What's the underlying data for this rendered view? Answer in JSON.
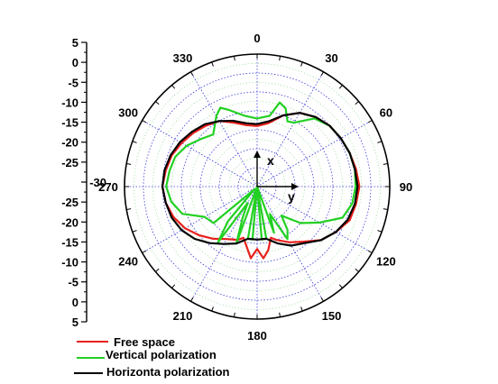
{
  "chart_data": {
    "type": "polar-line",
    "title": "",
    "angle_labels": [
      "0",
      "30",
      "60",
      "90",
      "120",
      "150",
      "180",
      "210",
      "240",
      "270",
      "300",
      "330"
    ],
    "radial_axis": {
      "ticks": [
        "5",
        "0",
        "-5",
        "-10",
        "-15",
        "-20",
        "-25",
        "-30",
        "-25",
        "-20",
        "-15",
        "-10",
        "-5",
        "0",
        "5"
      ],
      "rlim": [
        -30,
        5
      ],
      "unit": ""
    },
    "inset_axes": {
      "x_label": "x",
      "y_label": "y"
    },
    "grid": true,
    "legend_position": "bottom-left",
    "series": [
      {
        "name": "Free space",
        "color": "#e8201c",
        "angle_deg": [
          0,
          10,
          20,
          30,
          40,
          50,
          60,
          70,
          80,
          90,
          100,
          110,
          120,
          130,
          140,
          150,
          160,
          165,
          170,
          175,
          180,
          185,
          190,
          195,
          200,
          210,
          220,
          230,
          240,
          250,
          260,
          270,
          280,
          290,
          300,
          310,
          320,
          330,
          340,
          350
        ],
        "values": [
          -14,
          -13,
          -10,
          -7.5,
          -6,
          -5,
          -4.5,
          -4,
          -3.5,
          -3,
          -3.5,
          -4,
          -6,
          -8,
          -11,
          -13,
          -15,
          -16,
          -13,
          -11,
          -13.5,
          -11,
          -14,
          -16,
          -15,
          -14,
          -12,
          -10,
          -8,
          -6.5,
          -5.5,
          -5,
          -5.5,
          -6,
          -7,
          -8,
          -9,
          -10,
          -12,
          -13.5
        ]
      },
      {
        "name": "Vertical polarization",
        "color": "#22d022",
        "angle_deg": [
          0,
          10,
          15,
          20,
          25,
          30,
          40,
          50,
          60,
          70,
          80,
          90,
          100,
          110,
          120,
          130,
          135,
          140,
          145,
          150,
          155,
          160,
          165,
          170,
          175,
          180,
          185,
          190,
          195,
          200,
          205,
          210,
          215,
          220,
          225,
          230,
          240,
          250,
          260,
          270,
          280,
          290,
          300,
          310,
          320,
          330,
          335,
          340,
          350
        ],
        "values": [
          -12,
          -11,
          -7,
          -8,
          -11,
          -10.5,
          -6.5,
          -5,
          -4.5,
          -4,
          -3.8,
          -4,
          -4.5,
          -6,
          -11,
          -15,
          -18,
          -20,
          -16,
          -14,
          -22,
          -17,
          -30,
          -16,
          -16,
          -30,
          -16,
          -16,
          -30,
          -14,
          -21,
          -25,
          -12,
          -18,
          -29,
          -15,
          -14,
          -9,
          -7,
          -6,
          -6.5,
          -7,
          -8.5,
          -10.5,
          -12,
          -8.5,
          -7,
          -8.5,
          -11
        ]
      },
      {
        "name": "Horizonta polarization",
        "color": "#000000",
        "angle_deg": [
          0,
          10,
          20,
          30,
          40,
          50,
          60,
          70,
          80,
          90,
          100,
          110,
          120,
          130,
          140,
          150,
          160,
          170,
          180,
          190,
          200,
          210,
          220,
          230,
          240,
          250,
          260,
          270,
          280,
          290,
          300,
          310,
          320,
          330,
          340,
          350
        ],
        "values": [
          -13.5,
          -12.5,
          -10,
          -7.5,
          -6,
          -5,
          -4.5,
          -4,
          -3.8,
          -3.5,
          -3.8,
          -4.5,
          -6,
          -8,
          -10.5,
          -12,
          -14,
          -16,
          -16,
          -16,
          -14,
          -12.5,
          -10.5,
          -8.5,
          -7,
          -6,
          -5.5,
          -5,
          -5.2,
          -5.7,
          -6.5,
          -7.5,
          -8.5,
          -10,
          -11.5,
          -13
        ]
      }
    ]
  }
}
